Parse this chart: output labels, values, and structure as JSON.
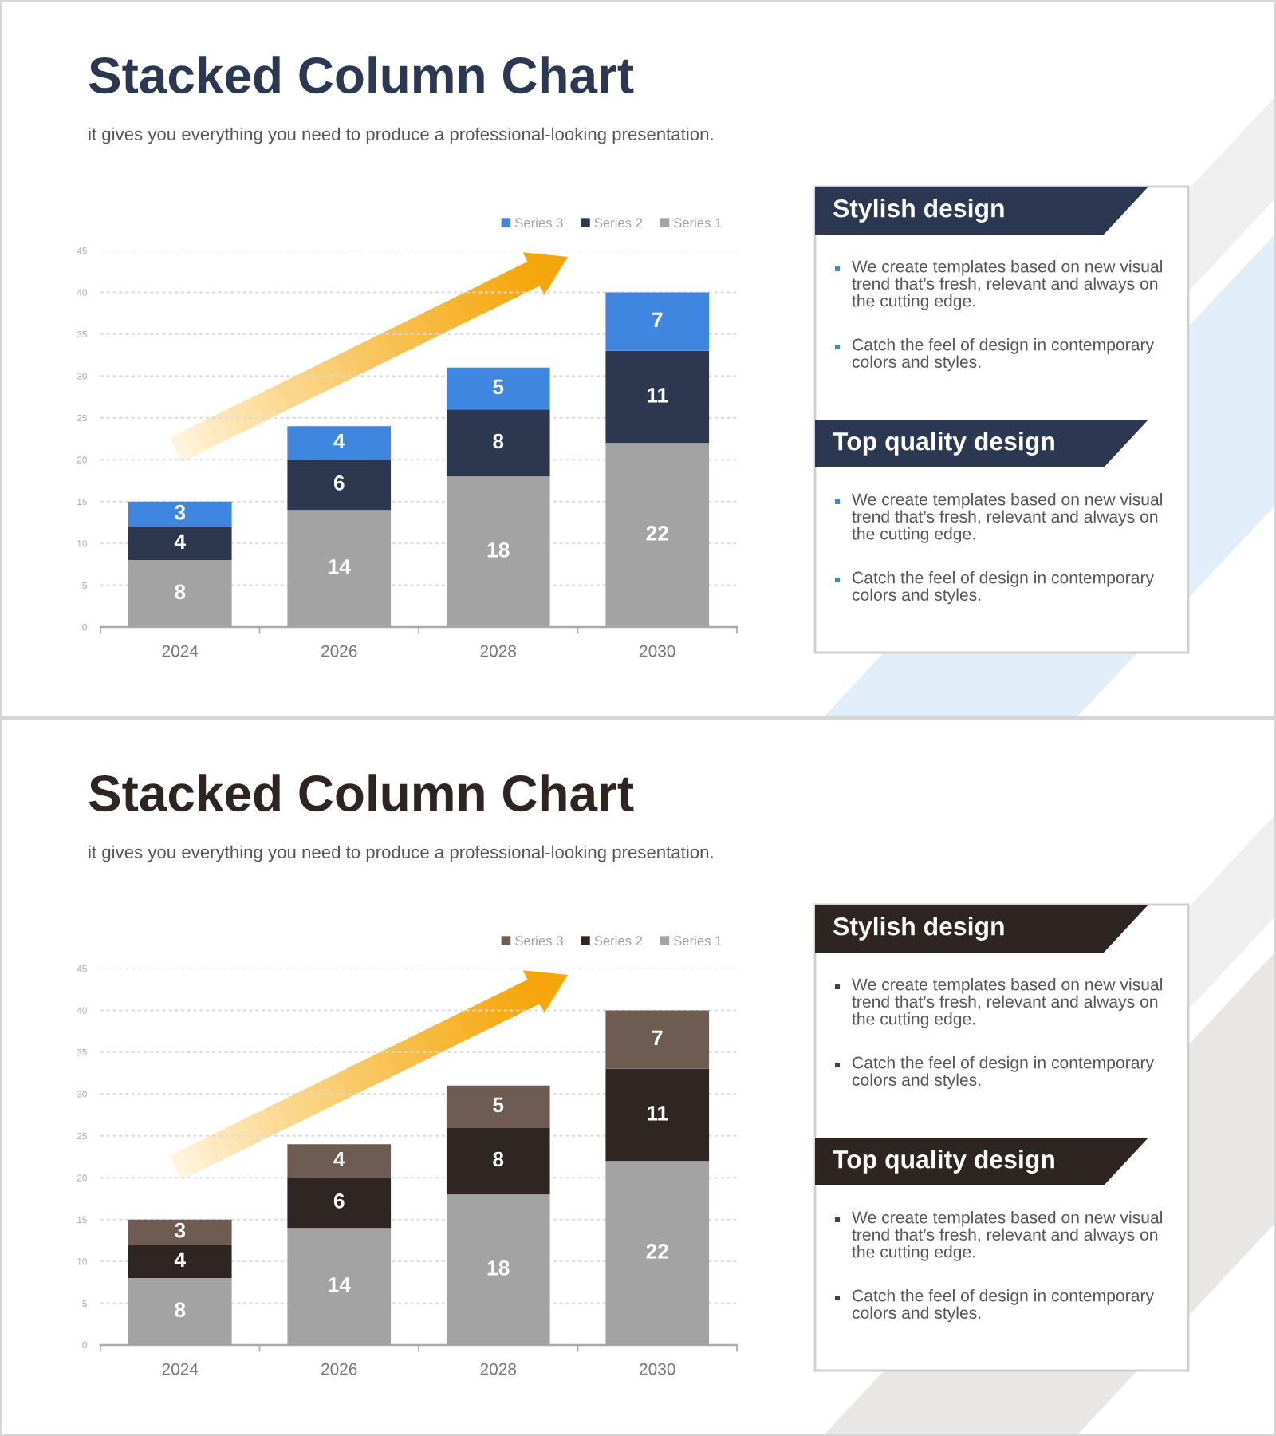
{
  "chart_data": [
    {
      "type": "bar",
      "title": "Stacked Column Chart",
      "subtitle": "it gives you everything you need to produce a professional-looking presentation.",
      "categories": [
        "2024",
        "2026",
        "2028",
        "2030"
      ],
      "series": [
        {
          "name": "Series 1",
          "color": "#a3a3a3",
          "values": [
            8,
            14,
            18,
            22
          ]
        },
        {
          "name": "Series 2",
          "color": "#2d3850",
          "values": [
            4,
            6,
            8,
            11
          ]
        },
        {
          "name": "Series 3",
          "color": "#3f86e0",
          "values": [
            3,
            4,
            5,
            7
          ]
        }
      ],
      "stacked": true,
      "ylim": [
        0,
        45
      ],
      "yticks": [
        0,
        5,
        10,
        15,
        20,
        25,
        30,
        35,
        40,
        45
      ],
      "grid": "y",
      "legend": "top right",
      "data_labels": true
    },
    {
      "type": "other",
      "title": "Stylish design",
      "annotations": [
        "We create templates based on new visual trend that’s fresh, relevant and always on the cutting edge.",
        "Catch the feel of design in contemporary colors and styles."
      ],
      "colors": [
        "#2c3852",
        "#3f86e0"
      ]
    },
    {
      "type": "other",
      "title": "Top quality design",
      "annotations": [
        "We create templates based on new visual trend that’s fresh, relevant and always on the cutting edge.",
        "Catch the feel of design in contemporary colors and styles."
      ],
      "colors": [
        "#2c3852",
        "#3f86e0"
      ]
    },
    {
      "type": "bar",
      "title": "Stacked Column Chart",
      "subtitle": "it gives you everything you need to produce a professional-looking presentation.",
      "categories": [
        "2024",
        "2026",
        "2028",
        "2030"
      ],
      "series": [
        {
          "name": "Series 1",
          "color": "#a3a3a3",
          "values": [
            8,
            14,
            18,
            22
          ]
        },
        {
          "name": "Series 2",
          "color": "#2f2523",
          "values": [
            4,
            6,
            8,
            11
          ]
        },
        {
          "name": "Series 3",
          "color": "#6e5c53",
          "values": [
            3,
            4,
            5,
            7
          ]
        }
      ],
      "stacked": true,
      "ylim": [
        0,
        45
      ],
      "yticks": [
        0,
        5,
        10,
        15,
        20,
        25,
        30,
        35,
        40,
        45
      ],
      "grid": "y",
      "legend": "top right",
      "data_labels": true
    },
    {
      "type": "other",
      "title": "Stylish design",
      "annotations": [
        "We create templates based on new visual trend that’s fresh, relevant and always on the cutting edge.",
        "Catch the feel of design in contemporary colors and styles."
      ],
      "colors": [
        "#2e2523",
        "#4a3f3a"
      ]
    },
    {
      "type": "other",
      "title": "Top quality design",
      "annotations": [
        "We create templates based on new visual trend that’s fresh, relevant and always on the cutting edge.",
        "Catch the feel of design in contemporary colors and styles."
      ],
      "colors": [
        "#2e2523",
        "#4a3f3a"
      ]
    }
  ]
}
